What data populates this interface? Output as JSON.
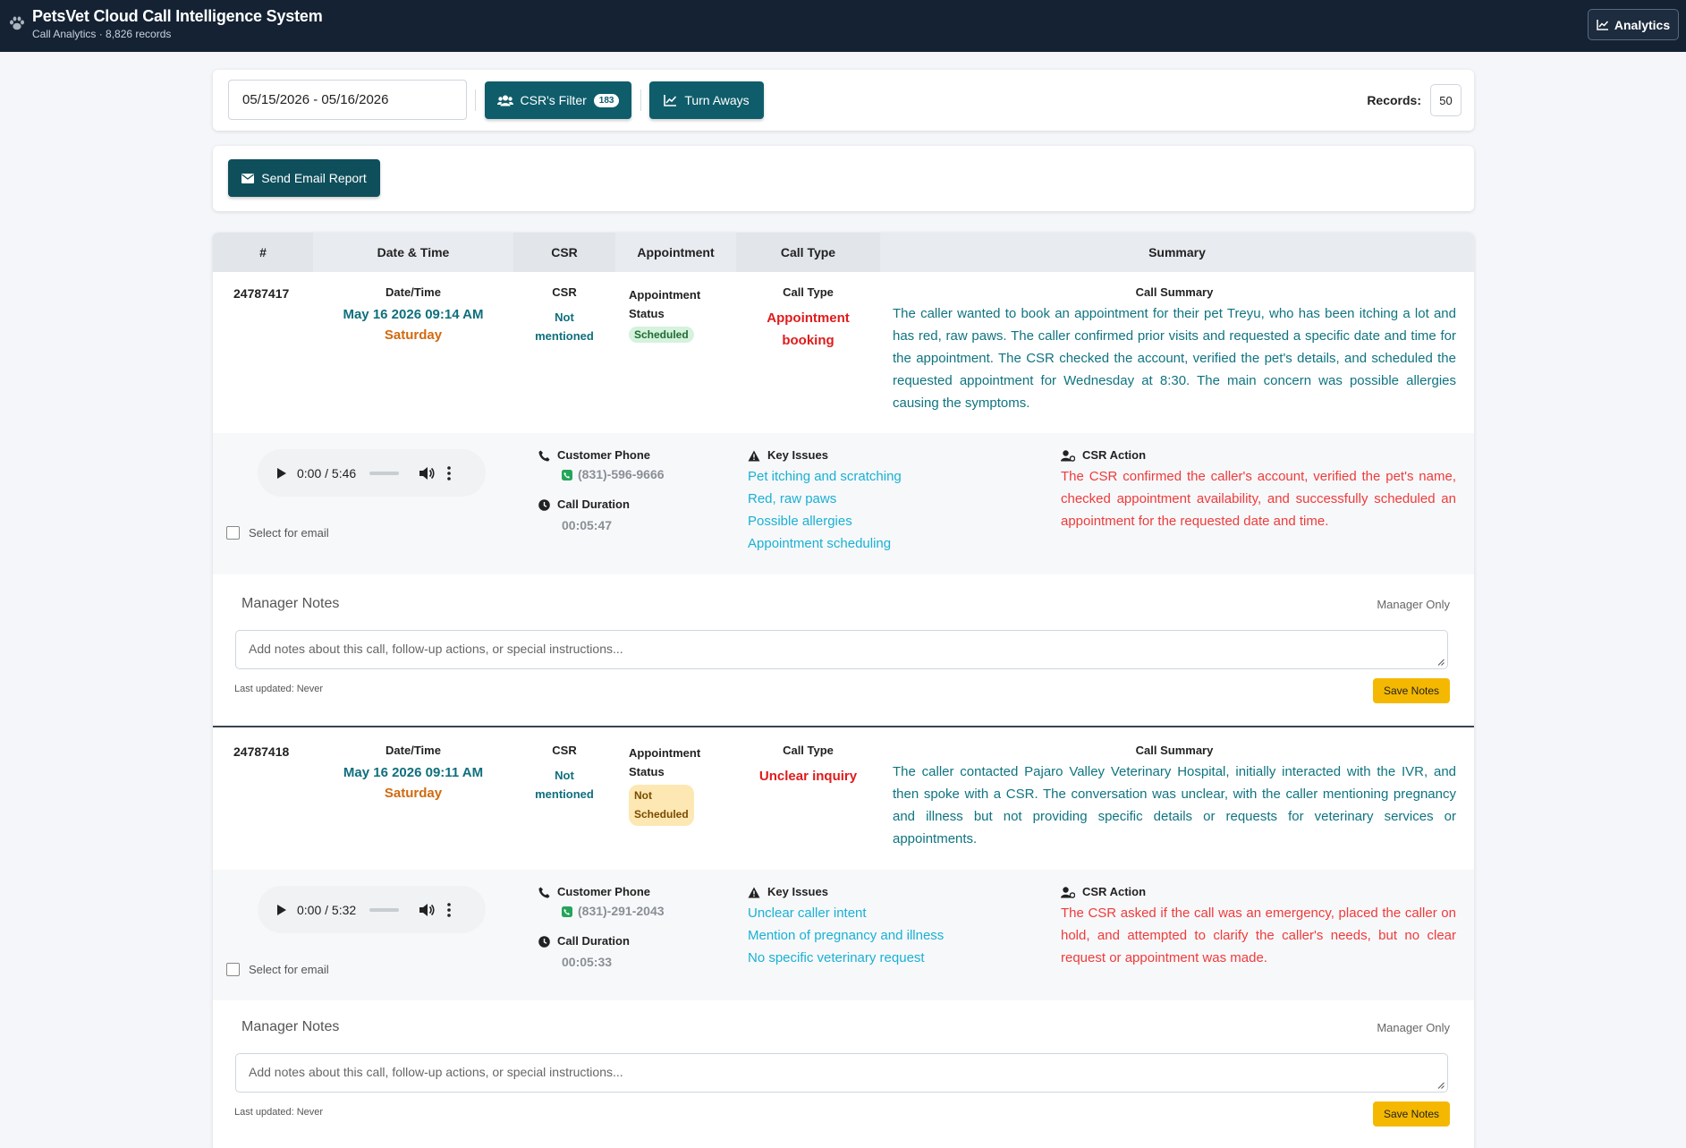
{
  "header": {
    "title": "PetsVet Cloud Call Intelligence System",
    "subtitle": "Call Analytics · 8,826 records",
    "analytics_label": "Analytics",
    "paw_icon": "paw-icon"
  },
  "filters": {
    "date_range": "05/15/2026 - 05/16/2026",
    "csr_filter_label": "CSR's Filter",
    "csr_filter_count": "183",
    "turn_aways_label": "Turn Aways",
    "records_label": "Records:",
    "records_value": "50"
  },
  "actions": {
    "send_email_label": "Send Email Report"
  },
  "table": {
    "headers": [
      "#",
      "Date & Time",
      "CSR",
      "Appointment",
      "Call Type",
      "Summary"
    ],
    "rows": [
      {
        "id": "24787417",
        "date_label": "Date/Time",
        "date": "May 16 2026 09:14 AM",
        "weekday": "Saturday",
        "csr_label": "CSR",
        "csr_line1": "Not",
        "csr_line2": "mentioned",
        "appt_label_1": "Appointment",
        "appt_label_2": "Status",
        "appt_status": "Scheduled",
        "call_type_label": "Call Type",
        "call_type_1": "Appointment",
        "call_type_2": "booking",
        "summary_label": "Call Summary",
        "summary": "The caller wanted to book an appointment for their pet Treyu, who has been itching a lot and has red, raw paws. The caller confirmed prior visits and requested a specific date and time for the appointment. The CSR checked the account, verified the pet's details, and scheduled the requested appointment for Wednesday at 8:30. The main concern was possible allergies causing the symptoms.",
        "player_time": "0:00 / 5:46",
        "select_label": "Select for email",
        "phone_label": "Customer Phone",
        "phone": "(831)-596-9666",
        "duration_label": "Call Duration",
        "duration": "00:05:47",
        "issues_label": "Key Issues",
        "issues": [
          "Pet itching and scratching",
          "Red, raw paws",
          "Possible allergies",
          "Appointment scheduling"
        ],
        "action_label": "CSR Action",
        "action": "The CSR confirmed the caller's account, verified the pet's name, checked appointment availability, and successfully scheduled an appointment for the requested date and time.",
        "notes_title": "Manager Notes",
        "manager_only": "Manager Only",
        "notes_placeholder": "Add notes about this call, follow-up actions, or special instructions...",
        "last_updated": "Last updated: Never",
        "save_label": "Save Notes"
      },
      {
        "id": "24787418",
        "date_label": "Date/Time",
        "date": "May 16 2026 09:11 AM",
        "weekday": "Saturday",
        "csr_label": "CSR",
        "csr_line1": "Not",
        "csr_line2": "mentioned",
        "appt_label_1": "Appointment",
        "appt_label_2": "Status",
        "appt_status_1": "Not",
        "appt_status_2": "Scheduled",
        "call_type_label": "Call Type",
        "call_type_1": "Unclear inquiry",
        "summary_label": "Call Summary",
        "summary": "The caller contacted Pajaro Valley Veterinary Hospital, initially interacted with the IVR, and then spoke with a CSR. The conversation was unclear, with the caller mentioning pregnancy and illness but not providing specific details or requests for veterinary services or appointments.",
        "player_time": "0:00 / 5:32",
        "select_label": "Select for email",
        "phone_label": "Customer Phone",
        "phone": "(831)-291-2043",
        "duration_label": "Call Duration",
        "duration": "00:05:33",
        "issues_label": "Key Issues",
        "issues": [
          "Unclear caller intent",
          "Mention of pregnancy and illness",
          "No specific veterinary request"
        ],
        "action_label": "CSR Action",
        "action": "The CSR asked if the call was an emergency, placed the caller on hold, and attempted to clarify the caller's needs, but no clear request or appointment was made.",
        "notes_title": "Manager Notes",
        "manager_only": "Manager Only",
        "notes_placeholder": "Add notes about this call, follow-up actions, or special instructions...",
        "last_updated": "Last updated: Never",
        "save_label": "Save Notes"
      }
    ]
  },
  "colors": {
    "header_bg": "#142233",
    "teal": "#0f5d6b",
    "red": "#e01b1b",
    "orange": "#d06a10",
    "yellow": "#f5b800"
  }
}
